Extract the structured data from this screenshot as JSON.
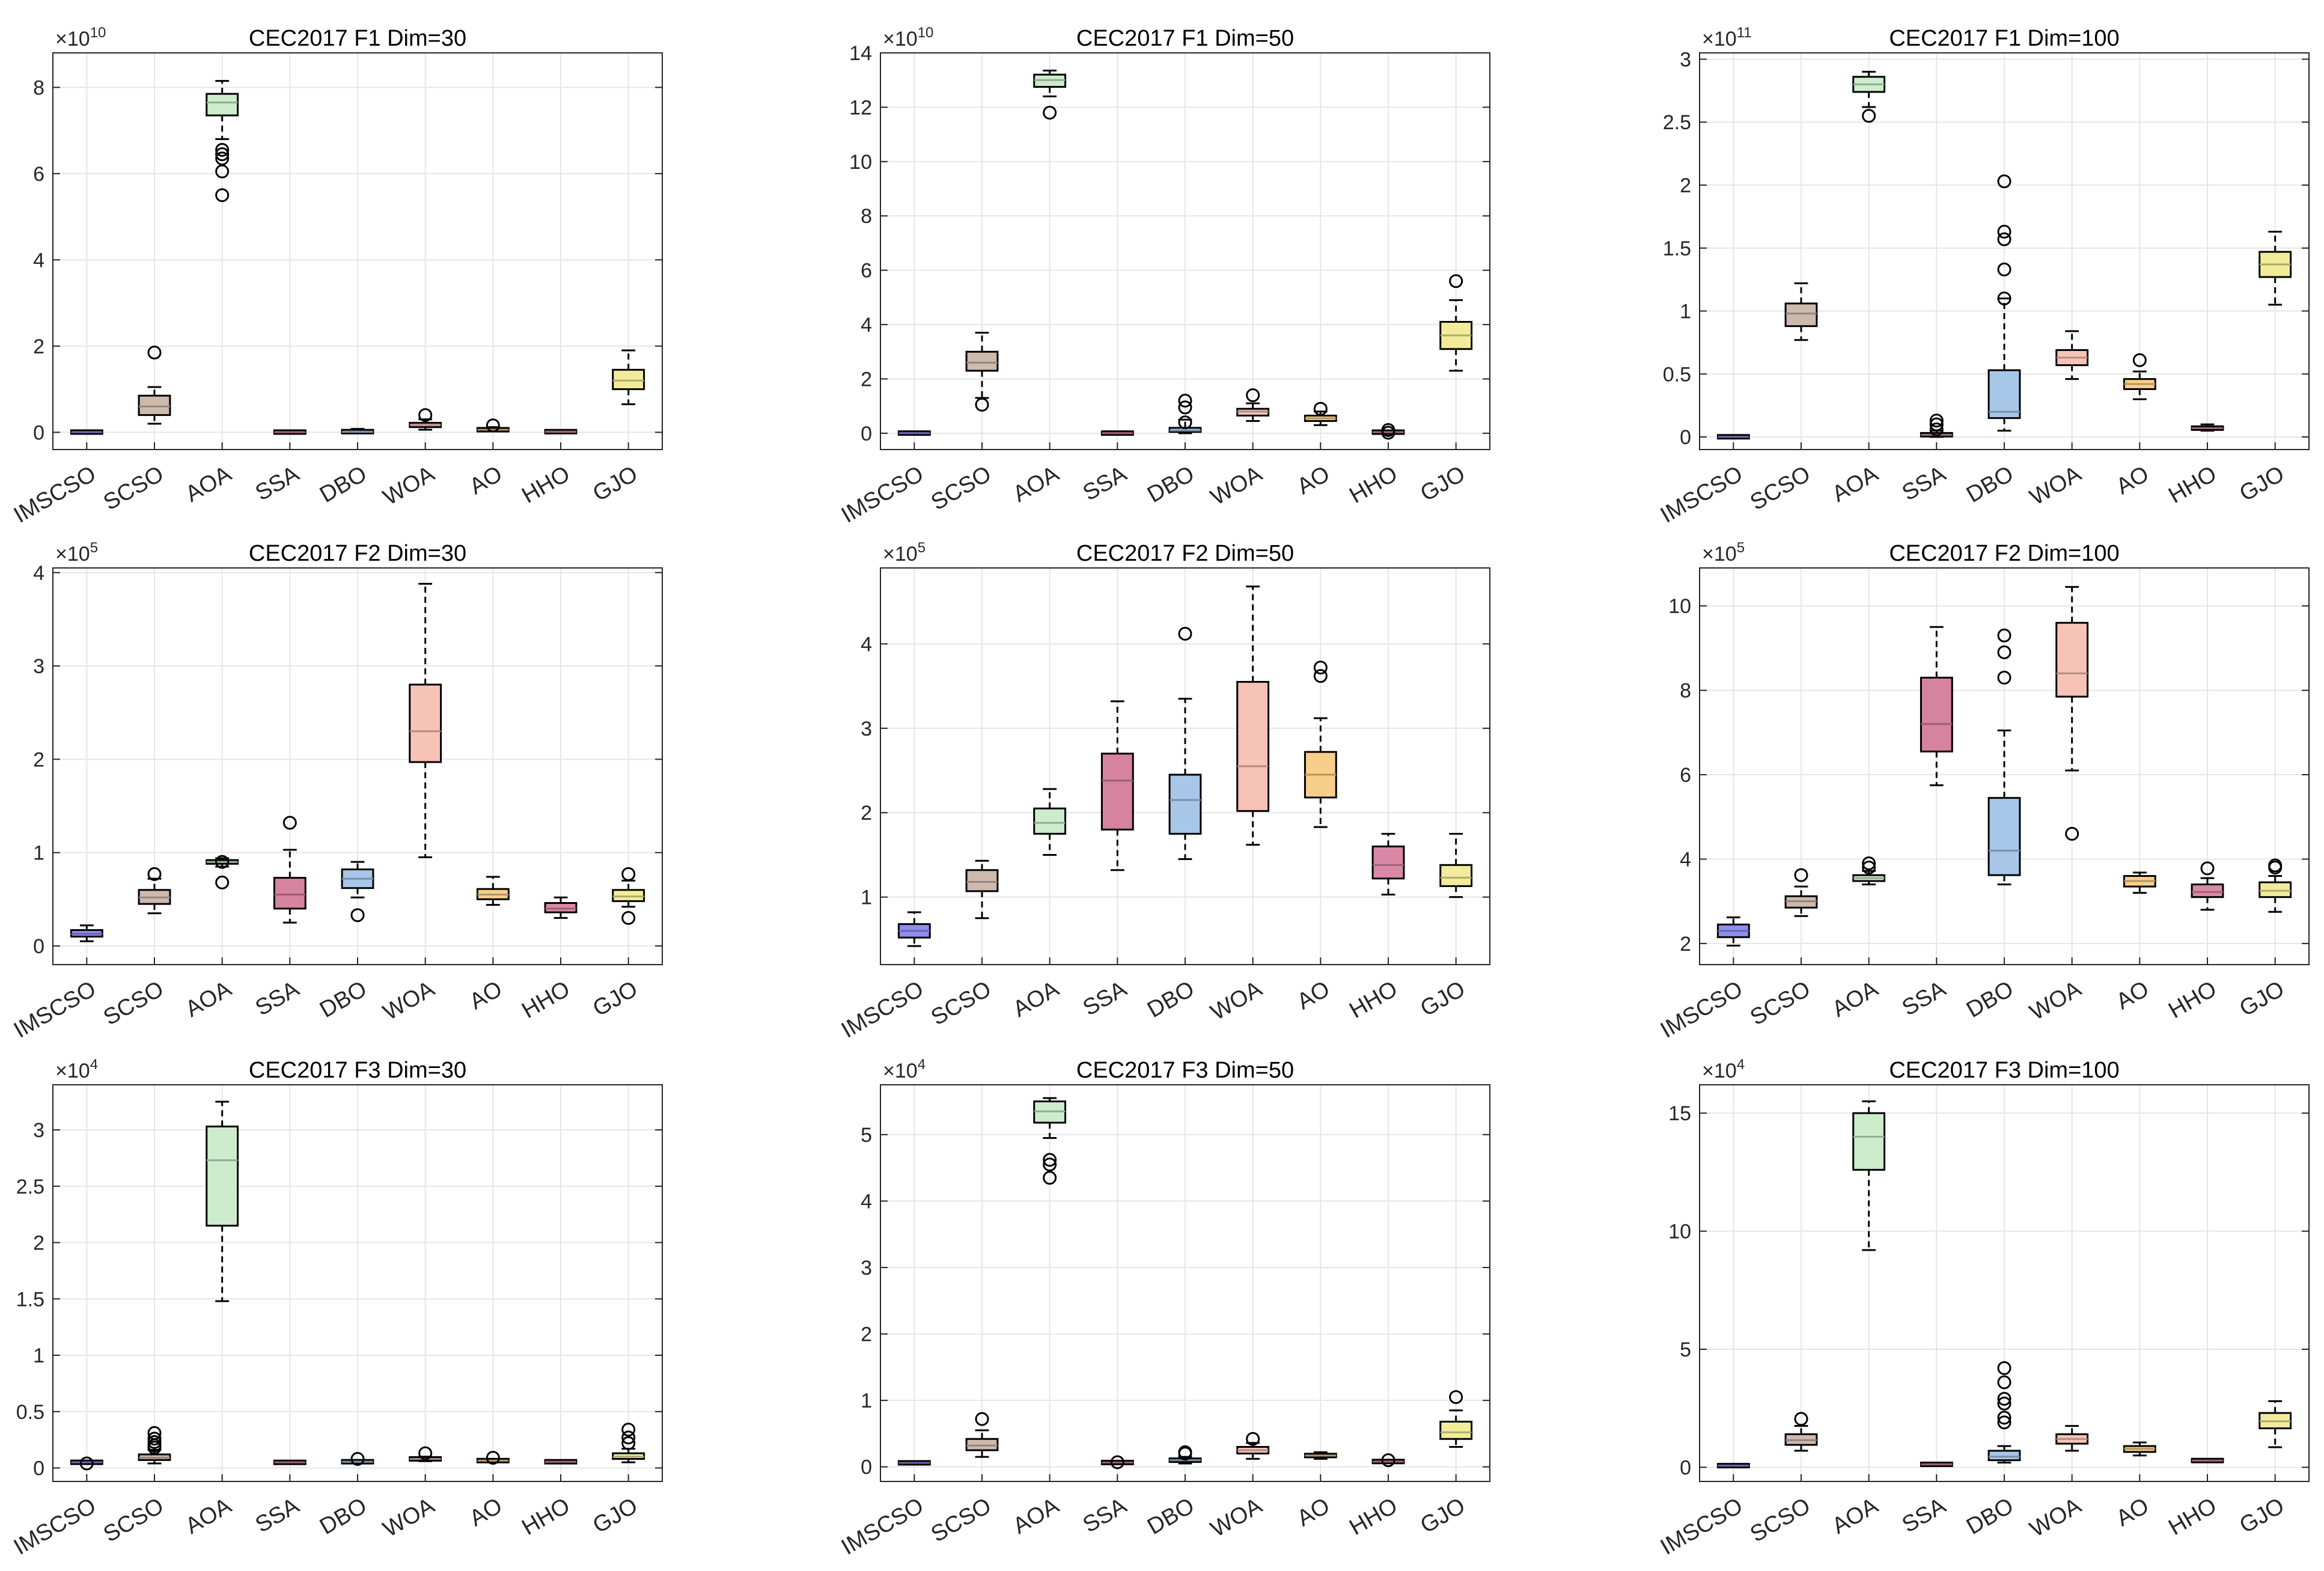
{
  "categories": [
    "IMSCSO",
    "SCSO",
    "AOA",
    "SSA",
    "DBO",
    "WOA",
    "AO",
    "HHO",
    "GJO"
  ],
  "colors": [
    "#8f8ef0",
    "#cdb9ad",
    "#cdeccb",
    "#d5839e",
    "#a8c7e8",
    "#f7c3b7",
    "#f8cf8a",
    "#d989a6",
    "#f2ec9a"
  ],
  "chart_data": [
    {
      "type": "box",
      "title": "CEC2017 F1 Dim=30",
      "exponent": "10",
      "ylim": [
        -0.4,
        8.8
      ],
      "yticks": [
        0,
        2,
        4,
        6,
        8
      ],
      "ytick_labels": [
        "0",
        "2",
        "4",
        "6",
        "8"
      ],
      "boxes": [
        {
          "min": 0,
          "q1": 0,
          "median": 0,
          "q3": 0.01,
          "max": 0.02,
          "outliers": []
        },
        {
          "min": 0.2,
          "q1": 0.4,
          "median": 0.6,
          "q3": 0.85,
          "max": 1.05,
          "outliers": [
            1.85
          ]
        },
        {
          "min": 6.8,
          "q1": 7.35,
          "median": 7.65,
          "q3": 7.85,
          "max": 8.15,
          "outliers": [
            6.55,
            6.45,
            6.35,
            6.05,
            5.5
          ]
        },
        {
          "min": 0,
          "q1": 0,
          "median": 0,
          "q3": 0.01,
          "max": 0.02,
          "outliers": []
        },
        {
          "min": 0,
          "q1": 0,
          "median": 0.01,
          "q3": 0.03,
          "max": 0.08,
          "outliers": []
        },
        {
          "min": 0.06,
          "q1": 0.12,
          "median": 0.17,
          "q3": 0.22,
          "max": 0.3,
          "outliers": [
            0.4
          ]
        },
        {
          "min": 0.02,
          "q1": 0.04,
          "median": 0.06,
          "q3": 0.08,
          "max": 0.12,
          "outliers": [
            0.16
          ]
        },
        {
          "min": 0,
          "q1": 0.01,
          "median": 0.01,
          "q3": 0.02,
          "max": 0.03,
          "outliers": []
        },
        {
          "min": 0.65,
          "q1": 1.0,
          "median": 1.2,
          "q3": 1.45,
          "max": 1.9,
          "outliers": []
        }
      ]
    },
    {
      "type": "box",
      "title": "CEC2017 F1 Dim=50",
      "exponent": "10",
      "ylim": [
        -0.6,
        14
      ],
      "yticks": [
        0,
        2,
        4,
        6,
        8,
        10,
        12,
        14
      ],
      "ytick_labels": [
        "0",
        "2",
        "4",
        "6",
        "8",
        "10",
        "12",
        "14"
      ],
      "boxes": [
        {
          "min": 0,
          "q1": 0,
          "median": 0,
          "q3": 0.01,
          "max": 0.02,
          "outliers": []
        },
        {
          "min": 1.3,
          "q1": 2.3,
          "median": 2.6,
          "q3": 3.0,
          "max": 3.7,
          "outliers": [
            1.05
          ]
        },
        {
          "min": 12.4,
          "q1": 12.75,
          "median": 13.0,
          "q3": 13.2,
          "max": 13.35,
          "outliers": [
            11.8
          ]
        },
        {
          "min": 0,
          "q1": 0,
          "median": 0,
          "q3": 0.01,
          "max": 0.02,
          "outliers": []
        },
        {
          "min": 0,
          "q1": 0.05,
          "median": 0.1,
          "q3": 0.2,
          "max": 0.5,
          "outliers": [
            1.2,
            0.95,
            0.4
          ]
        },
        {
          "min": 0.45,
          "q1": 0.65,
          "median": 0.8,
          "q3": 0.9,
          "max": 1.1,
          "outliers": [
            1.4
          ]
        },
        {
          "min": 0.3,
          "q1": 0.45,
          "median": 0.55,
          "q3": 0.65,
          "max": 0.8,
          "outliers": [
            0.9
          ]
        },
        {
          "min": 0,
          "q1": 0.02,
          "median": 0.04,
          "q3": 0.06,
          "max": 0.1,
          "outliers": [
            0.12,
            0.02
          ]
        },
        {
          "min": 2.3,
          "q1": 3.1,
          "median": 3.6,
          "q3": 4.1,
          "max": 4.9,
          "outliers": [
            5.6
          ]
        }
      ]
    },
    {
      "type": "box",
      "title": "CEC2017 F1 Dim=100",
      "exponent": "11",
      "ylim": [
        -0.1,
        3.05
      ],
      "yticks": [
        0,
        0.5,
        1,
        1.5,
        2,
        2.5,
        3
      ],
      "ytick_labels": [
        "0",
        "0.5",
        "1",
        "1.5",
        "2",
        "2.5",
        "3"
      ],
      "boxes": [
        {
          "min": 0,
          "q1": 0,
          "median": 0,
          "q3": 0.003,
          "max": 0.006,
          "outliers": []
        },
        {
          "min": 0.77,
          "q1": 0.88,
          "median": 0.98,
          "q3": 1.06,
          "max": 1.22,
          "outliers": []
        },
        {
          "min": 2.62,
          "q1": 2.74,
          "median": 2.8,
          "q3": 2.86,
          "max": 2.9,
          "outliers": [
            2.55
          ]
        },
        {
          "min": 0,
          "q1": 0.005,
          "median": 0.015,
          "q3": 0.03,
          "max": 0.05,
          "outliers": [
            0.06,
            0.1,
            0.13
          ]
        },
        {
          "min": 0.05,
          "q1": 0.15,
          "median": 0.2,
          "q3": 0.53,
          "max": 1.1,
          "outliers": [
            1.1,
            1.33,
            1.57,
            1.63,
            2.03
          ]
        },
        {
          "min": 0.46,
          "q1": 0.57,
          "median": 0.63,
          "q3": 0.69,
          "max": 0.84,
          "outliers": []
        },
        {
          "min": 0.3,
          "q1": 0.38,
          "median": 0.42,
          "q3": 0.46,
          "max": 0.52,
          "outliers": [
            0.61
          ]
        },
        {
          "min": 0.05,
          "q1": 0.06,
          "median": 0.07,
          "q3": 0.08,
          "max": 0.1,
          "outliers": []
        },
        {
          "min": 1.05,
          "q1": 1.27,
          "median": 1.37,
          "q3": 1.47,
          "max": 1.63,
          "outliers": []
        }
      ]
    },
    {
      "type": "box",
      "title": "CEC2017 F2 Dim=30",
      "exponent": "5",
      "ylim": [
        -0.2,
        4.05
      ],
      "yticks": [
        0,
        1,
        2,
        3,
        4
      ],
      "ytick_labels": [
        "0",
        "1",
        "2",
        "3",
        "4"
      ],
      "boxes": [
        {
          "min": 0.05,
          "q1": 0.1,
          "median": 0.13,
          "q3": 0.17,
          "max": 0.22,
          "outliers": []
        },
        {
          "min": 0.35,
          "q1": 0.45,
          "median": 0.52,
          "q3": 0.6,
          "max": 0.72,
          "outliers": [
            0.77
          ]
        },
        {
          "min": 0.85,
          "q1": 0.88,
          "median": 0.9,
          "q3": 0.92,
          "max": 0.94,
          "outliers": [
            0.68,
            0.9
          ]
        },
        {
          "min": 0.25,
          "q1": 0.4,
          "median": 0.55,
          "q3": 0.73,
          "max": 1.03,
          "outliers": [
            1.32
          ]
        },
        {
          "min": 0.52,
          "q1": 0.62,
          "median": 0.72,
          "q3": 0.82,
          "max": 0.9,
          "outliers": [
            0.33
          ]
        },
        {
          "min": 0.95,
          "q1": 1.97,
          "median": 2.3,
          "q3": 2.8,
          "max": 3.88,
          "outliers": []
        },
        {
          "min": 0.44,
          "q1": 0.5,
          "median": 0.55,
          "q3": 0.61,
          "max": 0.74,
          "outliers": []
        },
        {
          "min": 0.3,
          "q1": 0.36,
          "median": 0.4,
          "q3": 0.46,
          "max": 0.52,
          "outliers": []
        },
        {
          "min": 0.42,
          "q1": 0.48,
          "median": 0.53,
          "q3": 0.6,
          "max": 0.7,
          "outliers": [
            0.3,
            0.77
          ]
        }
      ]
    },
    {
      "type": "box",
      "title": "CEC2017 F2 Dim=50",
      "exponent": "5",
      "ylim": [
        0.2,
        4.9
      ],
      "yticks": [
        1,
        2,
        3,
        4
      ],
      "ytick_labels": [
        "1",
        "2",
        "3",
        "4"
      ],
      "boxes": [
        {
          "min": 0.42,
          "q1": 0.52,
          "median": 0.6,
          "q3": 0.68,
          "max": 0.82,
          "outliers": []
        },
        {
          "min": 0.75,
          "q1": 1.07,
          "median": 1.18,
          "q3": 1.32,
          "max": 1.43,
          "outliers": []
        },
        {
          "min": 1.5,
          "q1": 1.75,
          "median": 1.88,
          "q3": 2.05,
          "max": 2.28,
          "outliers": []
        },
        {
          "min": 1.32,
          "q1": 1.8,
          "median": 2.38,
          "q3": 2.7,
          "max": 3.32,
          "outliers": []
        },
        {
          "min": 1.45,
          "q1": 1.75,
          "median": 2.15,
          "q3": 2.45,
          "max": 3.35,
          "outliers": [
            4.12
          ]
        },
        {
          "min": 1.62,
          "q1": 2.02,
          "median": 2.55,
          "q3": 3.55,
          "max": 4.68,
          "outliers": []
        },
        {
          "min": 1.83,
          "q1": 2.18,
          "median": 2.45,
          "q3": 2.72,
          "max": 3.12,
          "outliers": [
            3.62,
            3.72
          ]
        },
        {
          "min": 1.03,
          "q1": 1.22,
          "median": 1.38,
          "q3": 1.6,
          "max": 1.75,
          "outliers": []
        },
        {
          "min": 1.0,
          "q1": 1.13,
          "median": 1.23,
          "q3": 1.38,
          "max": 1.75,
          "outliers": []
        }
      ]
    },
    {
      "type": "box",
      "title": "CEC2017 F2 Dim=100",
      "exponent": "5",
      "ylim": [
        1.5,
        10.9
      ],
      "yticks": [
        2,
        4,
        6,
        8,
        10
      ],
      "ytick_labels": [
        "2",
        "4",
        "6",
        "8",
        "10"
      ],
      "boxes": [
        {
          "min": 1.95,
          "q1": 2.15,
          "median": 2.3,
          "q3": 2.45,
          "max": 2.62,
          "outliers": []
        },
        {
          "min": 2.65,
          "q1": 2.85,
          "median": 3.0,
          "q3": 3.12,
          "max": 3.35,
          "outliers": [
            3.62
          ]
        },
        {
          "min": 3.4,
          "q1": 3.48,
          "median": 3.55,
          "q3": 3.62,
          "max": 3.72,
          "outliers": [
            3.8,
            3.9
          ]
        },
        {
          "min": 5.75,
          "q1": 6.55,
          "median": 7.2,
          "q3": 8.3,
          "max": 9.5,
          "outliers": []
        },
        {
          "min": 3.4,
          "q1": 3.62,
          "median": 4.2,
          "q3": 5.45,
          "max": 7.05,
          "outliers": [
            8.3,
            8.9,
            9.3
          ]
        },
        {
          "min": 6.1,
          "q1": 7.85,
          "median": 8.4,
          "q3": 9.6,
          "max": 10.45,
          "outliers": [
            4.6
          ]
        },
        {
          "min": 3.2,
          "q1": 3.35,
          "median": 3.48,
          "q3": 3.6,
          "max": 3.68,
          "outliers": []
        },
        {
          "min": 2.8,
          "q1": 3.1,
          "median": 3.22,
          "q3": 3.4,
          "max": 3.55,
          "outliers": [
            3.78
          ]
        },
        {
          "min": 2.75,
          "q1": 3.1,
          "median": 3.25,
          "q3": 3.45,
          "max": 3.6,
          "outliers": [
            3.8,
            3.85
          ]
        }
      ]
    },
    {
      "type": "box",
      "title": "CEC2017 F3 Dim=30",
      "exponent": "4",
      "ylim": [
        -0.12,
        3.4
      ],
      "yticks": [
        0,
        0.5,
        1,
        1.5,
        2,
        2.5,
        3
      ],
      "ytick_labels": [
        "0",
        "0.5",
        "1",
        "1.5",
        "2",
        "2.5",
        "3"
      ],
      "boxes": [
        {
          "min": 0.04,
          "q1": 0.045,
          "median": 0.05,
          "q3": 0.055,
          "max": 0.06,
          "outliers": [
            0.04
          ]
        },
        {
          "min": 0.04,
          "q1": 0.07,
          "median": 0.09,
          "q3": 0.12,
          "max": 0.16,
          "outliers": [
            0.18,
            0.2,
            0.23,
            0.26,
            0.31
          ]
        },
        {
          "min": 1.48,
          "q1": 2.15,
          "median": 2.73,
          "q3": 3.03,
          "max": 3.25,
          "outliers": []
        },
        {
          "min": 0.045,
          "q1": 0.047,
          "median": 0.05,
          "q3": 0.052,
          "max": 0.055,
          "outliers": []
        },
        {
          "min": 0.04,
          "q1": 0.05,
          "median": 0.055,
          "q3": 0.06,
          "max": 0.07,
          "outliers": [
            0.08
          ]
        },
        {
          "min": 0.06,
          "q1": 0.07,
          "median": 0.08,
          "q3": 0.09,
          "max": 0.1,
          "outliers": [
            0.13
          ]
        },
        {
          "min": 0.05,
          "q1": 0.06,
          "median": 0.065,
          "q3": 0.07,
          "max": 0.08,
          "outliers": [
            0.09
          ]
        },
        {
          "min": 0.045,
          "q1": 0.05,
          "median": 0.055,
          "q3": 0.06,
          "max": 0.065,
          "outliers": []
        },
        {
          "min": 0.05,
          "q1": 0.08,
          "median": 0.1,
          "q3": 0.13,
          "max": 0.17,
          "outliers": [
            0.22,
            0.27,
            0.34
          ]
        }
      ]
    },
    {
      "type": "box",
      "title": "CEC2017 F3 Dim=50",
      "exponent": "4",
      "ylim": [
        -0.22,
        5.75
      ],
      "yticks": [
        0,
        1,
        2,
        3,
        4,
        5
      ],
      "ytick_labels": [
        "0",
        "1",
        "2",
        "3",
        "4",
        "5"
      ],
      "boxes": [
        {
          "min": 0.05,
          "q1": 0.055,
          "median": 0.06,
          "q3": 0.065,
          "max": 0.07,
          "outliers": []
        },
        {
          "min": 0.15,
          "q1": 0.25,
          "median": 0.32,
          "q3": 0.42,
          "max": 0.55,
          "outliers": [
            0.72
          ]
        },
        {
          "min": 4.95,
          "q1": 5.18,
          "median": 5.35,
          "q3": 5.5,
          "max": 5.55,
          "outliers": [
            4.35,
            4.55,
            4.62
          ]
        },
        {
          "min": 0.05,
          "q1": 0.06,
          "median": 0.065,
          "q3": 0.07,
          "max": 0.08,
          "outliers": [
            0.07
          ]
        },
        {
          "min": 0.05,
          "q1": 0.08,
          "median": 0.1,
          "q3": 0.12,
          "max": 0.15,
          "outliers": [
            0.2,
            0.22
          ]
        },
        {
          "min": 0.12,
          "q1": 0.2,
          "median": 0.25,
          "q3": 0.3,
          "max": 0.36,
          "outliers": [
            0.42
          ]
        },
        {
          "min": 0.12,
          "q1": 0.15,
          "median": 0.17,
          "q3": 0.19,
          "max": 0.22,
          "outliers": []
        },
        {
          "min": 0.06,
          "q1": 0.07,
          "median": 0.08,
          "q3": 0.09,
          "max": 0.1,
          "outliers": [
            0.1
          ]
        },
        {
          "min": 0.3,
          "q1": 0.42,
          "median": 0.52,
          "q3": 0.68,
          "max": 0.85,
          "outliers": [
            1.05
          ]
        }
      ]
    },
    {
      "type": "box",
      "title": "CEC2017 F3 Dim=100",
      "exponent": "4",
      "ylim": [
        -0.6,
        16.2
      ],
      "yticks": [
        0,
        5,
        10,
        15
      ],
      "ytick_labels": [
        "0",
        "5",
        "10",
        "15"
      ],
      "boxes": [
        {
          "min": 0.05,
          "q1": 0.06,
          "median": 0.07,
          "q3": 0.08,
          "max": 0.09,
          "outliers": []
        },
        {
          "min": 0.7,
          "q1": 0.95,
          "median": 1.15,
          "q3": 1.4,
          "max": 1.75,
          "outliers": [
            2.05
          ]
        },
        {
          "min": 9.2,
          "q1": 12.6,
          "median": 14.0,
          "q3": 15.0,
          "max": 15.5,
          "outliers": []
        },
        {
          "min": 0.08,
          "q1": 0.1,
          "median": 0.12,
          "q3": 0.15,
          "max": 0.18,
          "outliers": []
        },
        {
          "min": 0.2,
          "q1": 0.3,
          "median": 0.45,
          "q3": 0.7,
          "max": 0.9,
          "outliers": [
            1.9,
            2.1,
            2.7,
            2.9,
            3.6,
            4.2
          ]
        },
        {
          "min": 0.7,
          "q1": 1.0,
          "median": 1.2,
          "q3": 1.4,
          "max": 1.75,
          "outliers": []
        },
        {
          "min": 0.5,
          "q1": 0.65,
          "median": 0.78,
          "q3": 0.9,
          "max": 1.05,
          "outliers": []
        },
        {
          "min": 0.22,
          "q1": 0.26,
          "median": 0.28,
          "q3": 0.31,
          "max": 0.35,
          "outliers": []
        },
        {
          "min": 0.85,
          "q1": 1.65,
          "median": 1.95,
          "q3": 2.3,
          "max": 2.8,
          "outliers": []
        }
      ]
    }
  ]
}
